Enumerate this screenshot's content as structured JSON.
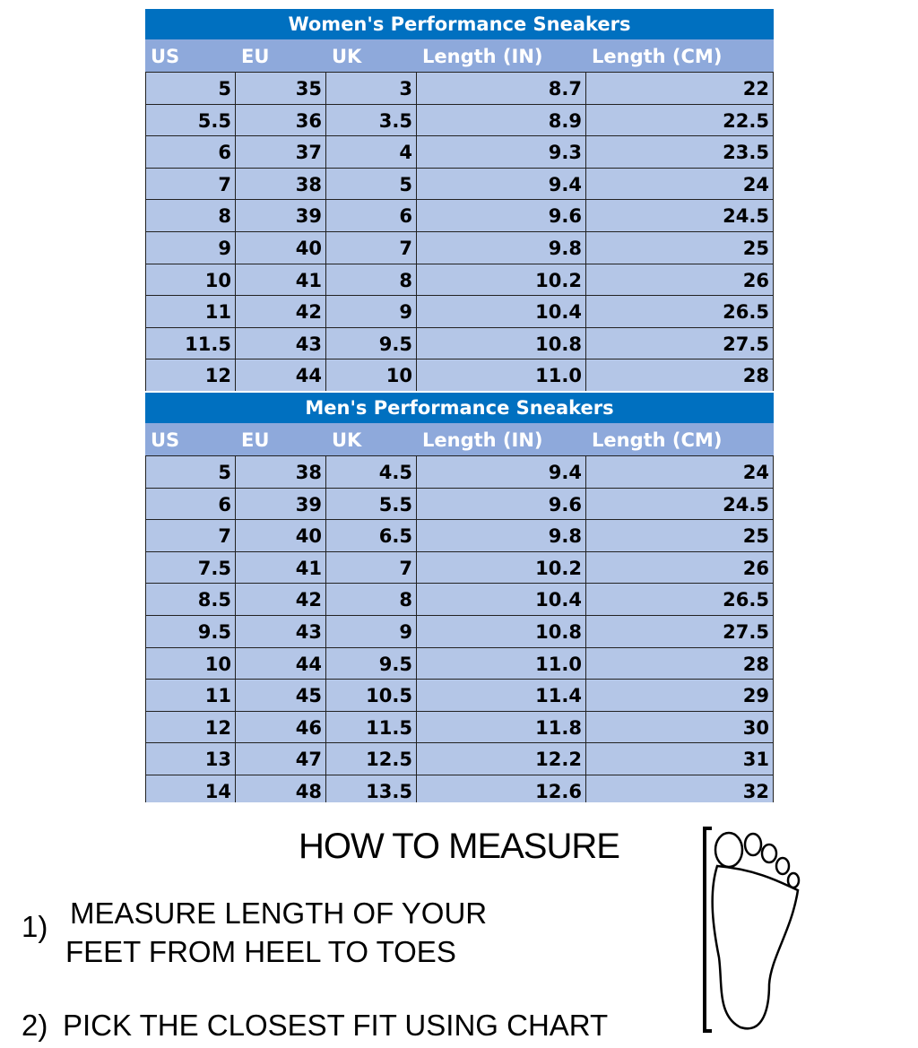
{
  "columns": [
    "US",
    "EU",
    "UK",
    "Length (IN)",
    "Length (CM)"
  ],
  "women": {
    "title": "Women's Performance Sneakers",
    "rows": [
      [
        "5",
        "35",
        "3",
        "8.7",
        "22"
      ],
      [
        "5.5",
        "36",
        "3.5",
        "8.9",
        "22.5"
      ],
      [
        "6",
        "37",
        "4",
        "9.3",
        "23.5"
      ],
      [
        "7",
        "38",
        "5",
        "9.4",
        "24"
      ],
      [
        "8",
        "39",
        "6",
        "9.6",
        "24.5"
      ],
      [
        "9",
        "40",
        "7",
        "9.8",
        "25"
      ],
      [
        "10",
        "41",
        "8",
        "10.2",
        "26"
      ],
      [
        "11",
        "42",
        "9",
        "10.4",
        "26.5"
      ],
      [
        "11.5",
        "43",
        "9.5",
        "10.8",
        "27.5"
      ],
      [
        "12",
        "44",
        "10",
        "11.0",
        "28"
      ]
    ]
  },
  "men": {
    "title": "Men's Performance Sneakers",
    "rows": [
      [
        "5",
        "38",
        "4.5",
        "9.4",
        "24"
      ],
      [
        "6",
        "39",
        "5.5",
        "9.6",
        "24.5"
      ],
      [
        "7",
        "40",
        "6.5",
        "9.8",
        "25"
      ],
      [
        "7.5",
        "41",
        "7",
        "10.2",
        "26"
      ],
      [
        "8.5",
        "42",
        "8",
        "10.4",
        "26.5"
      ],
      [
        "9.5",
        "43",
        "9",
        "10.8",
        "27.5"
      ],
      [
        "10",
        "44",
        "9.5",
        "11.0",
        "28"
      ],
      [
        "11",
        "45",
        "10.5",
        "11.4",
        "29"
      ],
      [
        "12",
        "46",
        "11.5",
        "11.8",
        "30"
      ],
      [
        "13",
        "47",
        "12.5",
        "12.2",
        "31"
      ],
      [
        "14",
        "48",
        "13.5",
        "12.6",
        "32"
      ]
    ]
  },
  "colors": {
    "title_bar": "#0070C0",
    "header": "#8EA9DB",
    "row": "#B4C6E7"
  },
  "instructions": {
    "heading": "HOW TO MEASURE",
    "step1_number": "1)",
    "step1_line1": "MEASURE LENGTH OF YOUR",
    "step1_line2": "FEET FROM HEEL TO TOES",
    "step2_number": "2)",
    "step2_text": "PICK THE CLOSEST FIT USING CHART"
  },
  "icon": "foot-outline-icon"
}
